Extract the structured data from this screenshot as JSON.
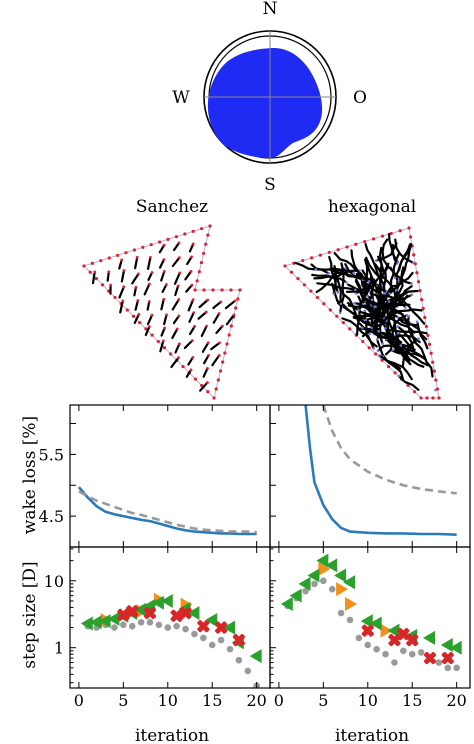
{
  "compass": {
    "labels": {
      "north": "N",
      "south": "S",
      "west": "W",
      "east": "O"
    },
    "fill_color": "#1f2bf2"
  },
  "layouts": {
    "left_title": "Sanchez",
    "right_title": "hexagonal",
    "boundary_color": "#b9aee0",
    "turbine_color": "#e0202a"
  },
  "axes": {
    "xlabel": "iteration",
    "ylabel_top": "wake loss [%]",
    "ylabel_bottom": "step size [D]"
  },
  "colors": {
    "solid": "#2b7bba",
    "dashed": "#999999",
    "gray": "#9a9a9a",
    "orange": "#f39019",
    "green": "#2ca02c",
    "red": "#d62728"
  },
  "chart_data": [
    {
      "type": "line",
      "panel": "top-left",
      "ylabel": "wake loss [%]",
      "xlim": [
        -1,
        21.5
      ],
      "ylim": [
        4.0,
        6.3
      ],
      "yticks": [
        "4.5",
        "5.5"
      ],
      "series": [
        {
          "style": "solid",
          "x": [
            0,
            1,
            2,
            3,
            4,
            5,
            6,
            7,
            8,
            9,
            10,
            11,
            12,
            13,
            14,
            15,
            16,
            17,
            18,
            19,
            20
          ],
          "y": [
            4.97,
            4.8,
            4.66,
            4.57,
            4.53,
            4.5,
            4.47,
            4.44,
            4.42,
            4.38,
            4.34,
            4.3,
            4.27,
            4.25,
            4.24,
            4.23,
            4.22,
            4.22,
            4.21,
            4.21,
            4.21
          ]
        },
        {
          "style": "dashed",
          "x": [
            0,
            1,
            2,
            3,
            4,
            5,
            6,
            7,
            8,
            9,
            10,
            11,
            12,
            13,
            14,
            15,
            16,
            17,
            18,
            19,
            20
          ],
          "y": [
            4.9,
            4.82,
            4.75,
            4.7,
            4.65,
            4.6,
            4.55,
            4.52,
            4.48,
            4.44,
            4.4,
            4.36,
            4.33,
            4.3,
            4.28,
            4.27,
            4.26,
            4.25,
            4.25,
            4.25,
            4.24
          ]
        }
      ]
    },
    {
      "type": "line",
      "panel": "top-right",
      "xlim": [
        -1,
        21.5
      ],
      "ylim": [
        4.0,
        6.3
      ],
      "series": [
        {
          "style": "solid",
          "x": [
            3,
            3.5,
            4,
            5,
            6,
            7,
            8,
            10,
            12,
            14,
            16,
            18,
            20
          ],
          "y": [
            6.3,
            5.6,
            5.05,
            4.68,
            4.45,
            4.31,
            4.25,
            4.23,
            4.22,
            4.22,
            4.21,
            4.21,
            4.2
          ]
        },
        {
          "style": "dashed",
          "x": [
            5,
            6,
            7,
            8,
            10,
            12,
            14,
            16,
            18,
            20
          ],
          "y": [
            6.3,
            5.88,
            5.6,
            5.42,
            5.22,
            5.09,
            5.0,
            4.94,
            4.9,
            4.87
          ]
        }
      ]
    },
    {
      "type": "scatter",
      "panel": "bottom-left",
      "xlabel": "iteration",
      "ylabel": "step size [D]",
      "yscale": "log",
      "xlim": [
        -1,
        21.5
      ],
      "ylim": [
        0.25,
        32
      ],
      "xticks": [
        "0",
        "5",
        "10",
        "15",
        "20"
      ],
      "yticks": [
        "1",
        "10"
      ],
      "series": [
        {
          "marker": "circle",
          "points": [
            [
              1,
              2.1
            ],
            [
              2,
              2.0
            ],
            [
              3,
              2.2
            ],
            [
              4,
              2.0
            ],
            [
              5,
              2.2
            ],
            [
              6,
              2.1
            ],
            [
              7,
              2.4
            ],
            [
              8,
              2.4
            ],
            [
              9,
              2.2
            ],
            [
              10,
              2.0
            ],
            [
              11,
              2.1
            ],
            [
              12,
              1.9
            ],
            [
              13,
              1.6
            ],
            [
              14,
              1.4
            ],
            [
              15,
              1.1
            ],
            [
              16,
              1.3
            ],
            [
              17,
              0.95
            ],
            [
              18,
              0.65
            ],
            [
              19,
              0.45
            ],
            [
              20,
              0.27
            ]
          ]
        },
        {
          "marker": "triangle-right",
          "points": [
            [
              3,
              2.6
            ],
            [
              7,
              3.5
            ],
            [
              9,
              5.2
            ],
            [
              12,
              4.4
            ]
          ]
        },
        {
          "marker": "triangle-left",
          "points": [
            [
              1,
              2.3
            ],
            [
              2,
              2.4
            ],
            [
              3,
              2.5
            ],
            [
              4,
              2.7
            ],
            [
              5,
              3.0
            ],
            [
              6,
              3.3
            ],
            [
              7,
              3.7
            ],
            [
              8,
              4.2
            ],
            [
              9,
              4.7
            ],
            [
              10,
              5.0
            ],
            [
              12,
              3.8
            ],
            [
              13,
              3.3
            ],
            [
              15,
              2.6
            ],
            [
              17,
              2.0
            ],
            [
              18,
              1.2
            ],
            [
              20,
              0.75
            ]
          ]
        },
        {
          "marker": "x",
          "points": [
            [
              5,
              3.1
            ],
            [
              6,
              3.5
            ],
            [
              8,
              3.3
            ],
            [
              11,
              3.0
            ],
            [
              12,
              3.3
            ],
            [
              14,
              2.1
            ],
            [
              16,
              2.0
            ],
            [
              18,
              1.3
            ]
          ]
        }
      ]
    },
    {
      "type": "scatter",
      "panel": "bottom-right",
      "xlabel": "iteration",
      "yscale": "log",
      "xlim": [
        -1,
        21.5
      ],
      "ylim": [
        0.25,
        32
      ],
      "xticks": [
        "0",
        "5",
        "10",
        "15",
        "20"
      ],
      "series": [
        {
          "marker": "circle",
          "points": [
            [
              1,
              4.2
            ],
            [
              2,
              5.5
            ],
            [
              3,
              7.0
            ],
            [
              4,
              9.0
            ],
            [
              5,
              10.0
            ],
            [
              6,
              7.5
            ],
            [
              7,
              3.3
            ],
            [
              8,
              2.6
            ],
            [
              9,
              1.4
            ],
            [
              10,
              1.1
            ],
            [
              11,
              0.95
            ],
            [
              12,
              0.8
            ],
            [
              13,
              0.6
            ],
            [
              14,
              0.9
            ],
            [
              15,
              0.8
            ],
            [
              16,
              0.85
            ],
            [
              17,
              0.7
            ],
            [
              18,
              0.6
            ],
            [
              19,
              0.5
            ],
            [
              20,
              0.5
            ]
          ]
        },
        {
          "marker": "triangle-right",
          "points": [
            [
              5,
              15.0
            ],
            [
              7,
              7.5
            ],
            [
              8,
              4.5
            ],
            [
              12,
              1.8
            ],
            [
              14,
              1.6
            ]
          ]
        },
        {
          "marker": "triangle-left",
          "points": [
            [
              1,
              4.5
            ],
            [
              2,
              6.0
            ],
            [
              3,
              9.0
            ],
            [
              4,
              12.0
            ],
            [
              5,
              20.0
            ],
            [
              6,
              17.0
            ],
            [
              7,
              12.0
            ],
            [
              8,
              9.5
            ],
            [
              10,
              2.5
            ],
            [
              11,
              2.3
            ],
            [
              13,
              1.8
            ],
            [
              15,
              1.5
            ],
            [
              17,
              1.4
            ],
            [
              19,
              1.1
            ],
            [
              20,
              1.0
            ]
          ]
        },
        {
          "marker": "x",
          "points": [
            [
              10,
              1.8
            ],
            [
              13,
              1.3
            ],
            [
              14,
              1.6
            ],
            [
              15,
              1.3
            ],
            [
              17,
              0.7
            ],
            [
              19,
              0.7
            ]
          ]
        }
      ]
    }
  ]
}
